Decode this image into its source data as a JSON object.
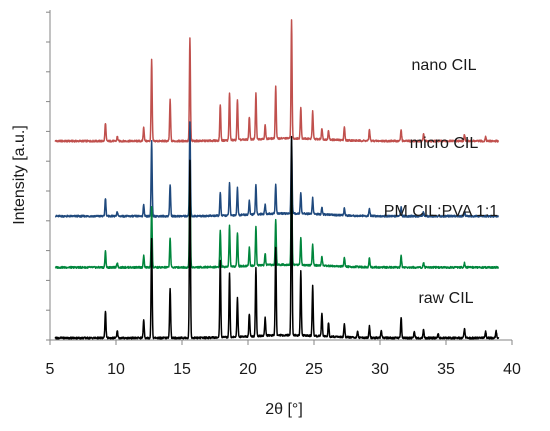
{
  "chart_data": {
    "type": "line",
    "title": "",
    "xlabel": "2θ [°]",
    "ylabel": "Intensity [a.u.]",
    "xlim": [
      5,
      40
    ],
    "xticks": [
      5,
      10,
      15,
      20,
      25,
      30,
      35,
      40
    ],
    "y_ticks_labeled": false,
    "grid": false,
    "legend": "none; series labelled inline above each trace",
    "stacked_offsets": true,
    "series": [
      {
        "name": "nano CIL",
        "color": "#c0504d",
        "baseline": 0.87,
        "peaks": [
          [
            9.2,
            0.08
          ],
          [
            10.1,
            0.02
          ],
          [
            12.1,
            0.06
          ],
          [
            12.7,
            0.36
          ],
          [
            14.1,
            0.18
          ],
          [
            15.6,
            0.45
          ],
          [
            17.9,
            0.16
          ],
          [
            18.6,
            0.21
          ],
          [
            19.2,
            0.18
          ],
          [
            20.1,
            0.1
          ],
          [
            20.6,
            0.2
          ],
          [
            21.3,
            0.06
          ],
          [
            22.1,
            0.23
          ],
          [
            23.3,
            0.52
          ],
          [
            24.0,
            0.14
          ],
          [
            24.9,
            0.12
          ],
          [
            25.6,
            0.05
          ],
          [
            26.1,
            0.04
          ],
          [
            27.3,
            0.06
          ],
          [
            29.2,
            0.05
          ],
          [
            31.6,
            0.05
          ],
          [
            33.3,
            0.03
          ],
          [
            36.4,
            0.03
          ],
          [
            38.0,
            0.02
          ]
        ]
      },
      {
        "name": "micro CIL",
        "color": "#1f497d",
        "baseline": 0.54,
        "peaks": [
          [
            9.2,
            0.08
          ],
          [
            10.1,
            0.02
          ],
          [
            12.1,
            0.05
          ],
          [
            12.7,
            0.33
          ],
          [
            14.1,
            0.14
          ],
          [
            15.6,
            0.41
          ],
          [
            17.9,
            0.1
          ],
          [
            18.6,
            0.14
          ],
          [
            19.2,
            0.12
          ],
          [
            20.1,
            0.06
          ],
          [
            20.6,
            0.13
          ],
          [
            21.3,
            0.04
          ],
          [
            22.1,
            0.13
          ],
          [
            23.3,
            0.33
          ],
          [
            24.0,
            0.09
          ],
          [
            24.9,
            0.07
          ],
          [
            25.6,
            0.03
          ],
          [
            27.3,
            0.03
          ],
          [
            29.2,
            0.03
          ],
          [
            31.6,
            0.04
          ],
          [
            33.3,
            0.02
          ],
          [
            36.4,
            0.02
          ]
        ]
      },
      {
        "name": "PM CIL:PVA 1:1",
        "color": "#00863c",
        "baseline": 0.315,
        "peaks": [
          [
            9.2,
            0.07
          ],
          [
            10.1,
            0.02
          ],
          [
            12.1,
            0.05
          ],
          [
            12.7,
            0.27
          ],
          [
            14.1,
            0.13
          ],
          [
            15.6,
            0.41
          ],
          [
            17.9,
            0.16
          ],
          [
            18.6,
            0.18
          ],
          [
            19.2,
            0.15
          ],
          [
            20.1,
            0.08
          ],
          [
            20.6,
            0.17
          ],
          [
            21.3,
            0.05
          ],
          [
            22.1,
            0.2
          ],
          [
            23.3,
            0.42
          ],
          [
            24.0,
            0.12
          ],
          [
            24.9,
            0.09
          ],
          [
            25.6,
            0.04
          ],
          [
            27.3,
            0.04
          ],
          [
            29.2,
            0.04
          ],
          [
            31.6,
            0.05
          ],
          [
            33.3,
            0.02
          ],
          [
            36.4,
            0.02
          ]
        ]
      },
      {
        "name": "raw CIL",
        "color": "#000000",
        "baseline": 0.005,
        "peaks": [
          [
            9.2,
            0.12
          ],
          [
            10.1,
            0.03
          ],
          [
            12.1,
            0.08
          ],
          [
            12.7,
            0.44
          ],
          [
            14.1,
            0.22
          ],
          [
            15.6,
            0.78
          ],
          [
            17.9,
            0.34
          ],
          [
            18.6,
            0.28
          ],
          [
            19.2,
            0.17
          ],
          [
            20.1,
            0.1
          ],
          [
            20.6,
            0.3
          ],
          [
            21.3,
            0.08
          ],
          [
            22.1,
            0.39
          ],
          [
            23.3,
            0.87
          ],
          [
            24.0,
            0.28
          ],
          [
            24.9,
            0.22
          ],
          [
            25.6,
            0.1
          ],
          [
            26.1,
            0.06
          ],
          [
            27.3,
            0.06
          ],
          [
            28.3,
            0.03
          ],
          [
            29.2,
            0.05
          ],
          [
            30.1,
            0.03
          ],
          [
            31.6,
            0.09
          ],
          [
            32.6,
            0.03
          ],
          [
            33.3,
            0.04
          ],
          [
            34.4,
            0.02
          ],
          [
            36.4,
            0.04
          ],
          [
            38.0,
            0.03
          ],
          [
            38.8,
            0.03
          ]
        ]
      }
    ]
  }
}
